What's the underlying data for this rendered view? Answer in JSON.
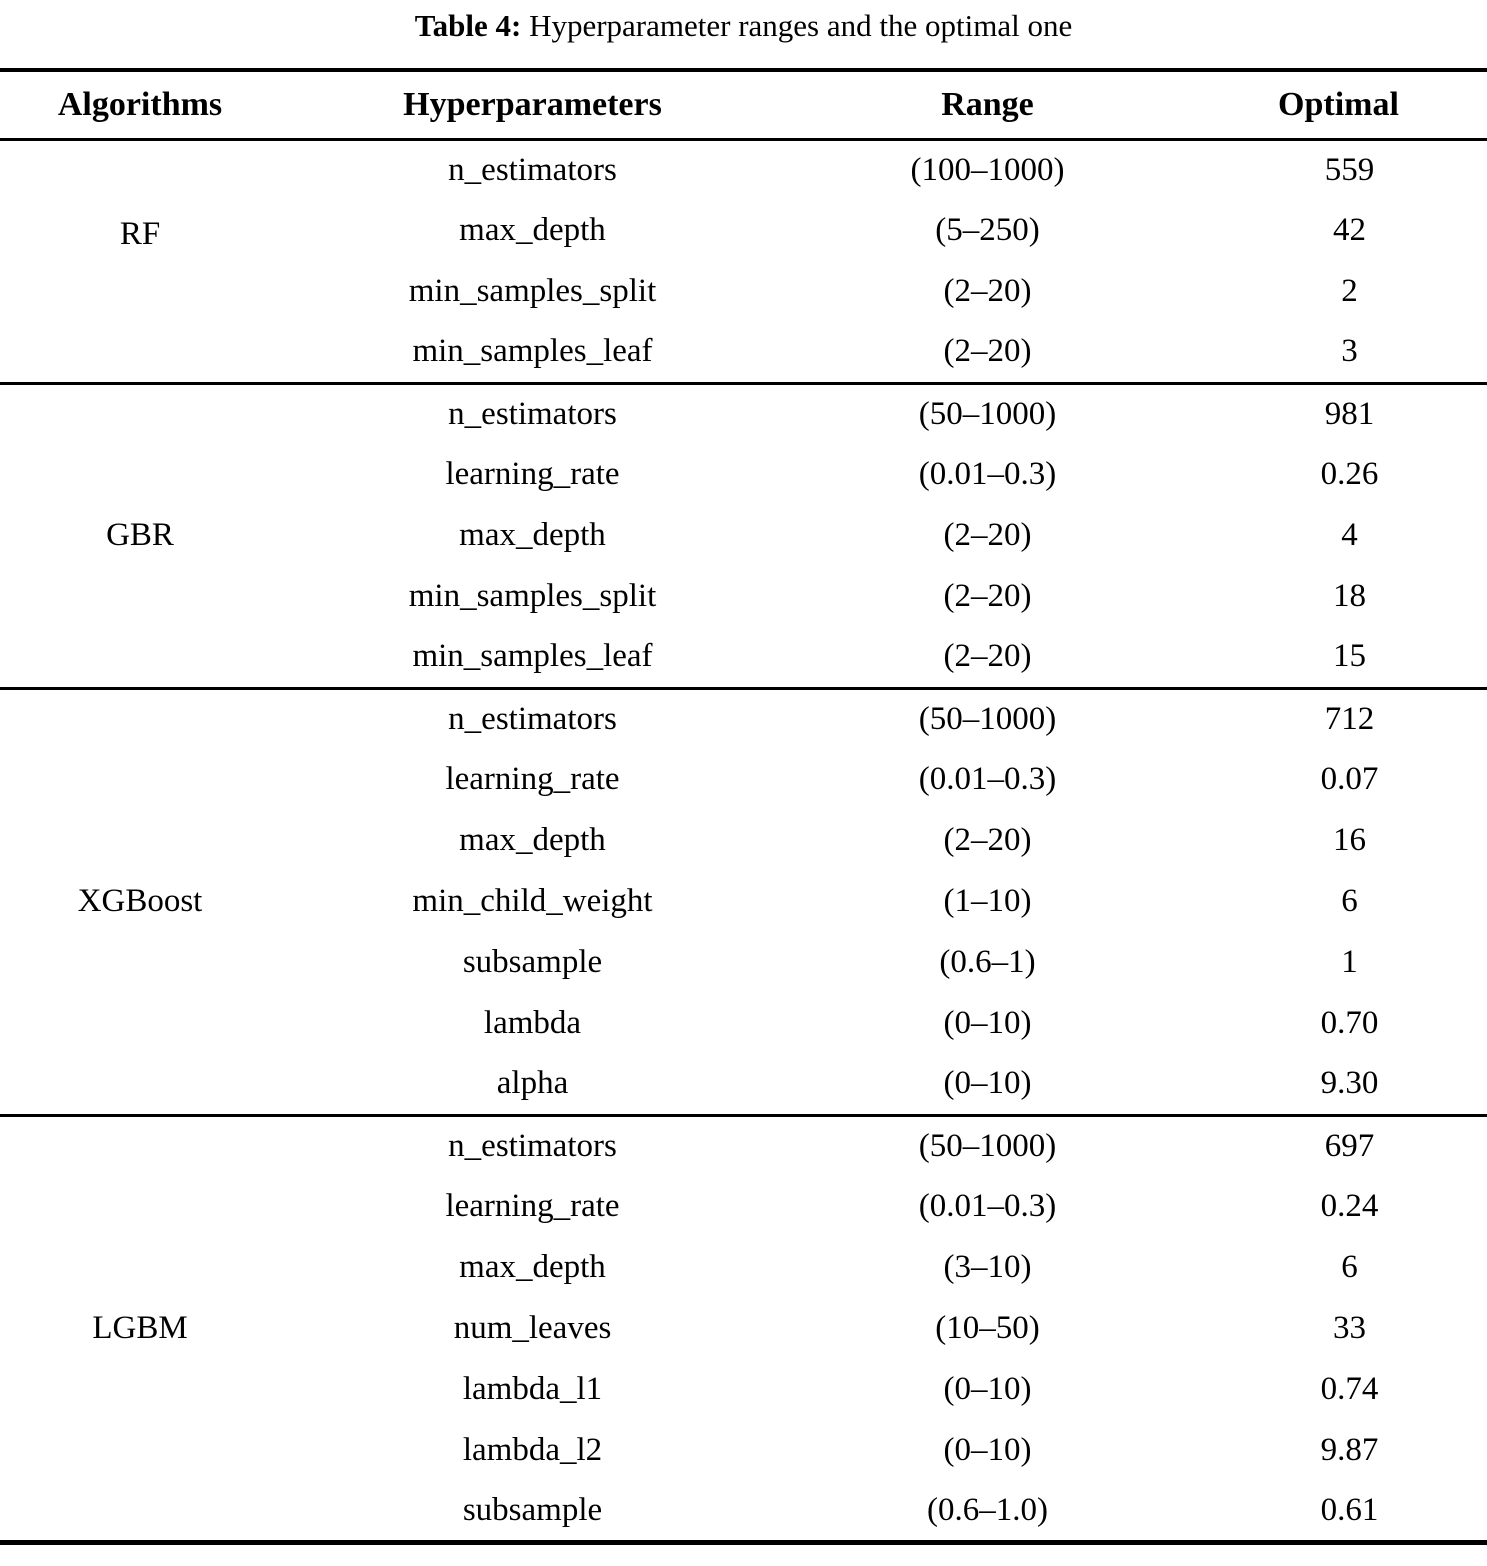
{
  "title": {
    "label": "Table 4:",
    "text": "Hyperparameter ranges and the optimal one"
  },
  "table": {
    "headers": [
      "Algorithms",
      "Hyperparameters",
      "Range",
      "Optimal"
    ],
    "groups": [
      {
        "algorithm": "RF",
        "rows": [
          {
            "hyperparameter": "n_estimators",
            "range": "(100–1000)",
            "optimal": "559"
          },
          {
            "hyperparameter": "max_depth",
            "range": "(5–250)",
            "optimal": "42"
          },
          {
            "hyperparameter": "min_samples_split",
            "range": "(2–20)",
            "optimal": "2"
          },
          {
            "hyperparameter": "min_samples_leaf",
            "range": "(2–20)",
            "optimal": "3"
          }
        ]
      },
      {
        "algorithm": "GBR",
        "rows": [
          {
            "hyperparameter": "n_estimators",
            "range": "(50–1000)",
            "optimal": "981"
          },
          {
            "hyperparameter": "learning_rate",
            "range": "(0.01–0.3)",
            "optimal": "0.26"
          },
          {
            "hyperparameter": "max_depth",
            "range": "(2–20)",
            "optimal": "4"
          },
          {
            "hyperparameter": "min_samples_split",
            "range": "(2–20)",
            "optimal": "18"
          },
          {
            "hyperparameter": "min_samples_leaf",
            "range": "(2–20)",
            "optimal": "15"
          }
        ]
      },
      {
        "algorithm": "XGBoost",
        "rows": [
          {
            "hyperparameter": "n_estimators",
            "range": "(50–1000)",
            "optimal": "712"
          },
          {
            "hyperparameter": "learning_rate",
            "range": "(0.01–0.3)",
            "optimal": "0.07"
          },
          {
            "hyperparameter": "max_depth",
            "range": "(2–20)",
            "optimal": "16"
          },
          {
            "hyperparameter": "min_child_weight",
            "range": "(1–10)",
            "optimal": "6"
          },
          {
            "hyperparameter": "subsample",
            "range": "(0.6–1)",
            "optimal": "1"
          },
          {
            "hyperparameter": "lambda",
            "range": "(0–10)",
            "optimal": "0.70"
          },
          {
            "hyperparameter": "alpha",
            "range": "(0–10)",
            "optimal": "9.30"
          }
        ]
      },
      {
        "algorithm": "LGBM",
        "rows": [
          {
            "hyperparameter": "n_estimators",
            "range": "(50–1000)",
            "optimal": "697"
          },
          {
            "hyperparameter": "learning_rate",
            "range": "(0.01–0.3)",
            "optimal": "0.24"
          },
          {
            "hyperparameter": "max_depth",
            "range": "(3–10)",
            "optimal": "6"
          },
          {
            "hyperparameter": "num_leaves",
            "range": "(10–50)",
            "optimal": "33"
          },
          {
            "hyperparameter": "lambda_l1",
            "range": "(0–10)",
            "optimal": "0.74"
          },
          {
            "hyperparameter": "lambda_l2",
            "range": "(0–10)",
            "optimal": "9.87"
          },
          {
            "hyperparameter": "subsample",
            "range": "(0.6–1.0)",
            "optimal": "0.61"
          }
        ]
      }
    ]
  },
  "colors": {
    "text": "#000000",
    "background": "#ffffff",
    "rule": "#000000"
  }
}
